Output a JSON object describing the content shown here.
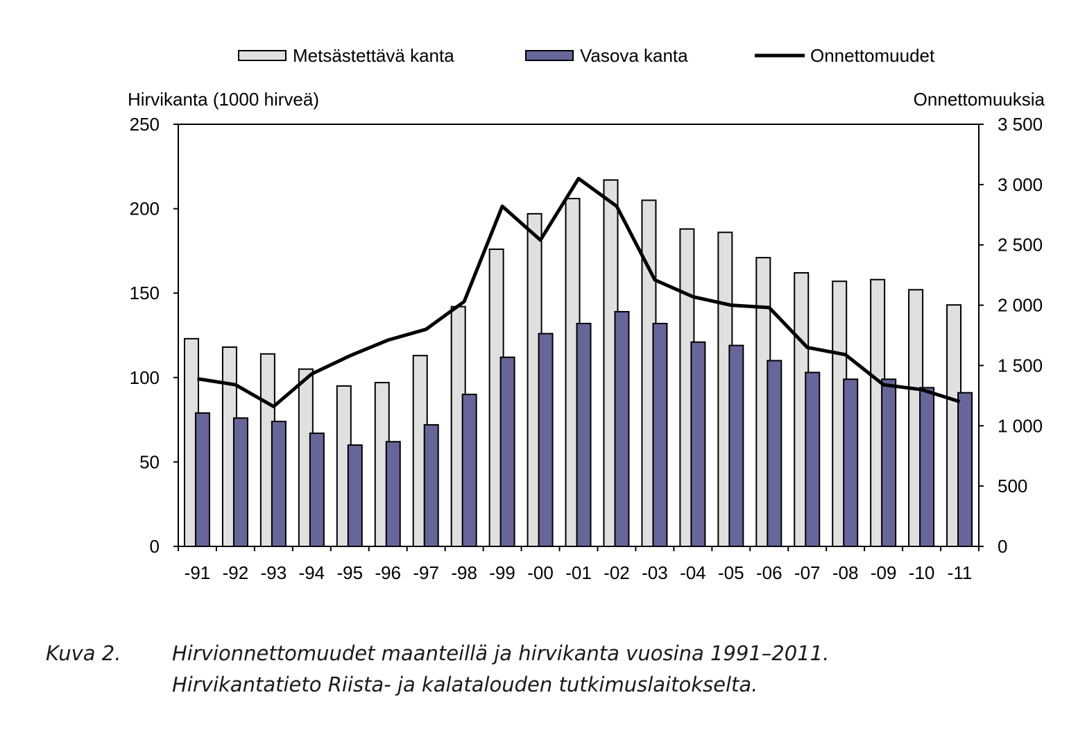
{
  "chart_data": {
    "type": "bar",
    "categories": [
      "-91",
      "-92",
      "-93",
      "-94",
      "-95",
      "-96",
      "-97",
      "-98",
      "-99",
      "-00",
      "-01",
      "-02",
      "-03",
      "-04",
      "-05",
      "-06",
      "-07",
      "-08",
      "-09",
      "-10",
      "-11"
    ],
    "series": [
      {
        "name": "Metsästettävä kanta",
        "kind": "bar",
        "axis": "left",
        "color": "#e0e0e0",
        "values": [
          123,
          118,
          114,
          105,
          95,
          97,
          113,
          142,
          176,
          197,
          206,
          217,
          205,
          188,
          186,
          171,
          162,
          157,
          158,
          152,
          143
        ]
      },
      {
        "name": "Vasova kanta",
        "kind": "bar",
        "axis": "left",
        "color": "#66669a",
        "values": [
          79,
          76,
          74,
          67,
          60,
          62,
          72,
          90,
          112,
          126,
          132,
          139,
          132,
          121,
          119,
          110,
          103,
          99,
          99,
          94,
          91
        ]
      },
      {
        "name": "Onnettomuudet",
        "kind": "line",
        "axis": "right",
        "color": "#000000",
        "values": [
          1390,
          1340,
          1160,
          1430,
          1580,
          1710,
          1800,
          2030,
          2820,
          2540,
          3050,
          2820,
          2210,
          2070,
          2000,
          1980,
          1650,
          1590,
          1340,
          1300,
          1200
        ]
      }
    ],
    "ylabel_left": "Hirvikanta (1000 hirveä)",
    "ylabel_right": "Onnettomuuksia",
    "ylim_left": [
      0,
      250
    ],
    "ylim_right": [
      0,
      3500
    ],
    "yticks_left": [
      "0",
      "50",
      "100",
      "150",
      "200",
      "250"
    ],
    "yticks_right": [
      "0",
      "500",
      "1 000",
      "1 500",
      "2 000",
      "2 500",
      "3 000",
      "3 500"
    ],
    "grid": false,
    "legend_position": "top"
  },
  "caption": {
    "label": "Kuva 2.",
    "line1": "Hirvionnettomuudet maanteillä ja hirvikanta vuosina 1991–2011.",
    "line2": "Hirvikantatieto Riista- ja kalatalouden tutkimuslaitokselta."
  }
}
